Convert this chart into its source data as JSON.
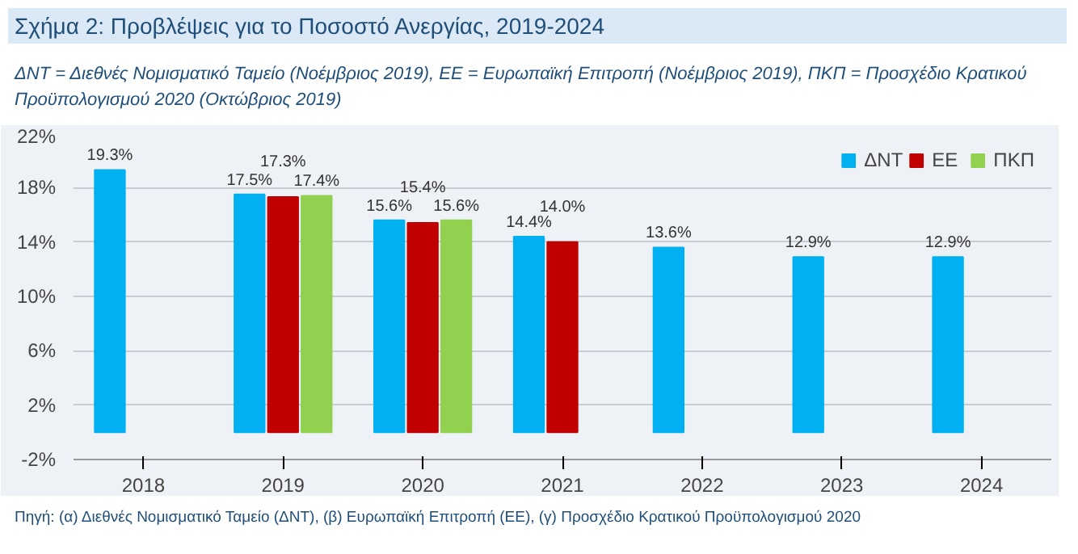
{
  "chart_data": {
    "type": "bar",
    "title": "Σχήμα 2: Προβλέψεις για το Ποσοστό Ανεργίας, 2019-2024",
    "subtitle": "ΔΝΤ = Διεθνές Νομισματικό Ταμείο (Νοέμβριος 2019), ΕΕ = Ευρωπαϊκή Επιτροπή (Νοέμβριος 2019), ΠΚΠ = Προσχέδιο Κρατικού Προϋπολογισμού 2020 (Οκτώβριος 2019)",
    "categories": [
      "2018",
      "2019",
      "2020",
      "2021",
      "2022",
      "2023",
      "2024"
    ],
    "series": [
      {
        "name": "ΔΝΤ",
        "color": "#00b0f0",
        "values": [
          19.3,
          17.5,
          15.6,
          14.4,
          13.6,
          12.9,
          12.9
        ]
      },
      {
        "name": "ΕΕ",
        "color": "#c00000",
        "values": [
          null,
          17.3,
          15.4,
          14.0,
          null,
          null,
          null
        ]
      },
      {
        "name": "ΠΚΠ",
        "color": "#92d050",
        "values": [
          null,
          17.4,
          15.6,
          null,
          null,
          null,
          null
        ]
      }
    ],
    "value_labels": [
      [
        "19.3%",
        "17.5%",
        "15.6%",
        "14.4%",
        "13.6%",
        "12.9%",
        "12.9%"
      ],
      [
        null,
        "17.3%",
        "15.4%",
        "14.0%",
        null,
        null,
        null
      ],
      [
        null,
        "17.4%",
        "15.6%",
        null,
        null,
        null,
        null
      ]
    ],
    "ylim": [
      -2,
      22
    ],
    "yticks": [
      {
        "value": -2,
        "label": "-2%"
      },
      {
        "value": 2,
        "label": "2%"
      },
      {
        "value": 6,
        "label": "6%"
      },
      {
        "value": 10,
        "label": "10%"
      },
      {
        "value": 14,
        "label": "14%"
      },
      {
        "value": 18,
        "label": "18%"
      },
      {
        "value": 22,
        "label": "22%"
      }
    ],
    "grid": "y",
    "legend": "top right",
    "annotations": [
      "Πηγή: (α) Διεθνές Νομισματικό Ταμείο (ΔΝΤ), (β) Ευρωπαϊκή Επιτροπή (ΕΕ), (γ) Προσχέδιο Κρατικού Προϋπολογισμού 2020"
    ]
  }
}
